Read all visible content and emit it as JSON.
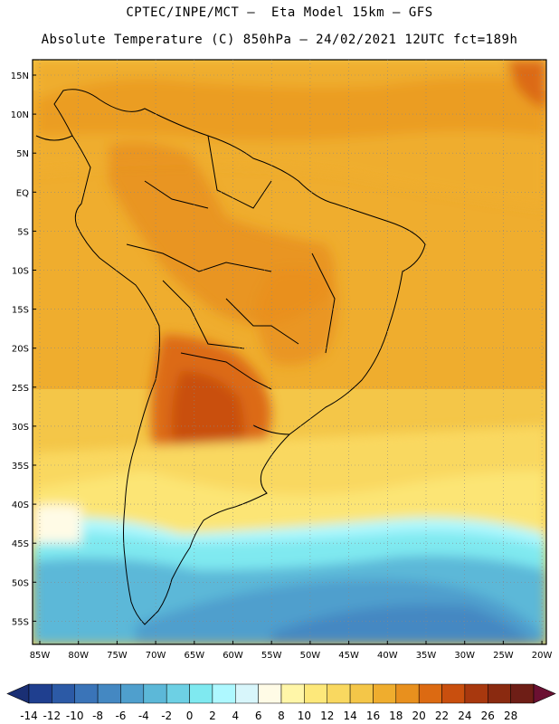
{
  "header": {
    "line1": "CPTEC/INPE/MCT –  Eta Model 15km – GFS",
    "line2": "Absolute Temperature (C) 850hPa – 24/02/2021 12UTC fct=189h"
  },
  "axes": {
    "lat_labels": [
      "15N",
      "10N",
      "5N",
      "EQ",
      "5S",
      "10S",
      "15S",
      "20S",
      "25S",
      "30S",
      "35S",
      "40S",
      "45S",
      "50S",
      "55S"
    ],
    "lon_labels": [
      "85W",
      "80W",
      "75W",
      "70W",
      "65W",
      "60W",
      "55W",
      "50W",
      "45W",
      "40W",
      "35W",
      "30W",
      "25W",
      "20W"
    ]
  },
  "colorbar": {
    "labels": [
      "-14",
      "-12",
      "-10",
      "-8",
      "-6",
      "-4",
      "-2",
      "0",
      "2",
      "4",
      "6",
      "8",
      "10",
      "12",
      "14",
      "16",
      "18",
      "20",
      "22",
      "24",
      "26",
      "28"
    ],
    "colors": [
      "#1f3f8f",
      "#2c5aa6",
      "#3a74b8",
      "#4488c2",
      "#4f9fcd",
      "#5cb8d8",
      "#6dd0e4",
      "#7fe9f0",
      "#aef8ff",
      "#d8f6fb",
      "#fffbe6",
      "#fff6a8",
      "#fde87a",
      "#f9d860",
      "#f4c648",
      "#efad2e",
      "#e8901e",
      "#dc6a12",
      "#c94f0e",
      "#a8380e",
      "#8a2a10",
      "#6e1e16"
    ],
    "under_color": "#1a2f74",
    "over_color": "#6b1032"
  }
}
